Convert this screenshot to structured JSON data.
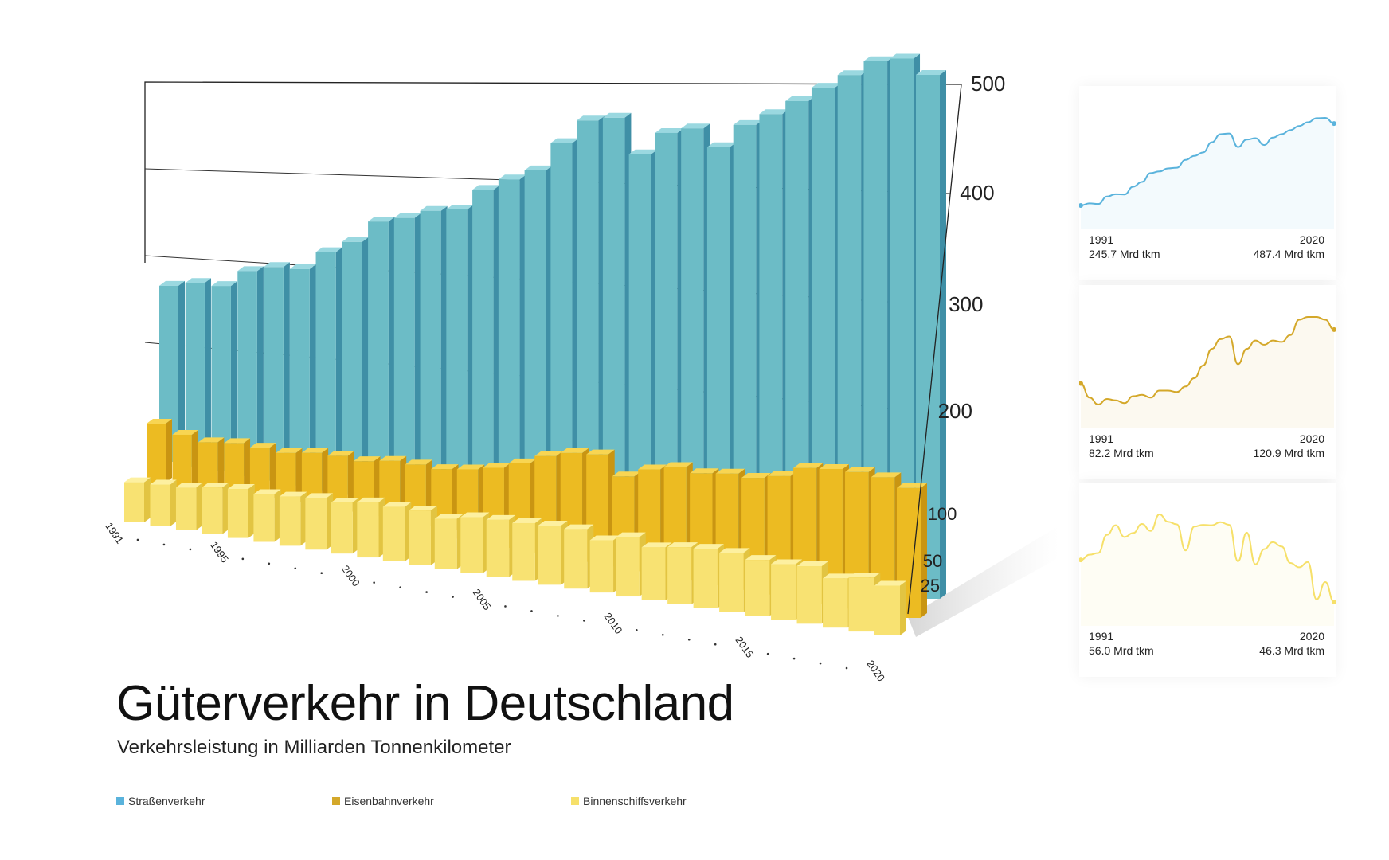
{
  "title": "Güterverkehr in Deutschland",
  "subtitle": "Verkehrsleistung in Milliarden Tonnenkilometer",
  "colors": {
    "road": "#5ab3dc",
    "rail": "#d4a82a",
    "inland": "#f6e06a"
  },
  "chart_data": {
    "type": "bar",
    "title": "Güterverkehr in Deutschland",
    "subtitle": "Verkehrsleistung in Milliarden Tonnenkilometer",
    "categories": [
      1991,
      1992,
      1993,
      1994,
      1995,
      1996,
      1997,
      1998,
      1999,
      2000,
      2001,
      2002,
      2003,
      2004,
      2005,
      2006,
      2007,
      2008,
      2009,
      2010,
      2011,
      2012,
      2013,
      2014,
      2015,
      2016,
      2017,
      2018,
      2019,
      2020
    ],
    "x_tick_labels": [
      "1991",
      "1995",
      "2000",
      "2005",
      "2010",
      "2015",
      "2020"
    ],
    "y_ticks": [
      25,
      50,
      100,
      200,
      300,
      400,
      500
    ],
    "ylim": [
      0,
      500
    ],
    "legend_position": "bottom",
    "series": [
      {
        "name": "Straßenverkehr",
        "values": [
          245.7,
          252,
          250,
          272,
          279,
          278,
          301,
          315,
          341,
          346,
          355,
          357,
          380,
          392,
          402,
          432,
          456,
          458,
          418,
          440,
          444,
          424,
          446,
          456,
          468,
          480,
          491,
          503,
          504,
          487.4
        ]
      },
      {
        "name": "Eisenbahnverkehr",
        "values": [
          82.2,
          72,
          67,
          71,
          70,
          68,
          73,
          74,
          72,
          77,
          77,
          76,
          80,
          86,
          95,
          107,
          114,
          116,
          96,
          107,
          113,
          110,
          113,
          112,
          117,
          128,
          130,
          130,
          128,
          120.9
        ]
      },
      {
        "name": "Binnenschiffsverkehr",
        "values": [
          56.0,
          57.2,
          57.6,
          61.8,
          64.0,
          61.3,
          62.2,
          64.3,
          62.7,
          66.5,
          64.8,
          64.2,
          58.2,
          63.7,
          64.1,
          64.0,
          64.7,
          64.1,
          55.7,
          62.3,
          55.0,
          58.5,
          60.1,
          59.1,
          55.3,
          54.3,
          55.5,
          46.9,
          50.9,
          46.3
        ]
      }
    ]
  },
  "cards": [
    {
      "start_year": "1991",
      "start_value": "245.7 Mrd tkm",
      "end_year": "2020",
      "end_value": "487.4 Mrd tkm"
    },
    {
      "start_year": "1991",
      "start_value": "82.2 Mrd tkm",
      "end_year": "2020",
      "end_value": "120.9 Mrd tkm"
    },
    {
      "start_year": "1991",
      "start_value": "56.0 Mrd tkm",
      "end_year": "2020",
      "end_value": "46.3 Mrd tkm"
    }
  ],
  "legend": [
    {
      "label": "Straßenverkehr"
    },
    {
      "label": "Eisenbahnverkehr"
    },
    {
      "label": "Binnenschiffsverkehr"
    }
  ]
}
